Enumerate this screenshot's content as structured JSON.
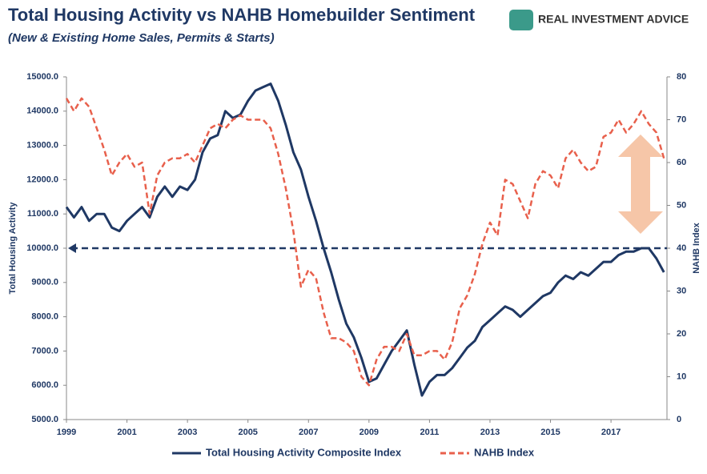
{
  "chart_data": {
    "type": "line",
    "title": "Total Housing Activity vs NAHB Homebuilder Sentiment",
    "subtitle": "(New & Existing Home Sales, Permits & Starts)",
    "source": "REAL INVESTMENT ADVICE",
    "y_label": "Total Housing Activity",
    "y2_label": "NAHB Index",
    "xlim": [
      1999,
      2018.85
    ],
    "xticks": [
      1999,
      2001,
      2003,
      2005,
      2007,
      2009,
      2011,
      2013,
      2015,
      2017
    ],
    "ylim": [
      5000,
      15000
    ],
    "yticks": [
      {
        "value": 5000,
        "label": "5000.0"
      },
      {
        "value": 6000,
        "label": "6000.0"
      },
      {
        "value": 7000,
        "label": "7000.0"
      },
      {
        "value": 8000,
        "label": "8000.0"
      },
      {
        "value": 9000,
        "label": "9000.0"
      },
      {
        "value": 10000,
        "label": "10000.0"
      },
      {
        "value": 11000,
        "label": "11000.0"
      },
      {
        "value": 12000,
        "label": "12000.0"
      },
      {
        "value": 13000,
        "label": "13000.0"
      },
      {
        "value": 14000,
        "label": "14000.0"
      },
      {
        "value": 15000,
        "label": "15000.0"
      }
    ],
    "y2lim": [
      0,
      80
    ],
    "y2ticks": [
      0,
      10,
      20,
      30,
      40,
      50,
      60,
      70,
      80
    ],
    "reference_line": 10000,
    "x": [
      1999,
      1999.25,
      1999.5,
      1999.75,
      2000,
      2000.25,
      2000.5,
      2000.75,
      2001,
      2001.25,
      2001.5,
      2001.75,
      2002,
      2002.25,
      2002.5,
      2002.75,
      2003,
      2003.25,
      2003.5,
      2003.75,
      2004,
      2004.25,
      2004.5,
      2004.75,
      2005,
      2005.25,
      2005.5,
      2005.75,
      2006,
      2006.25,
      2006.5,
      2006.75,
      2007,
      2007.25,
      2007.5,
      2007.75,
      2008,
      2008.25,
      2008.5,
      2008.75,
      2009,
      2009.25,
      2009.5,
      2009.75,
      2010,
      2010.25,
      2010.5,
      2010.75,
      2011,
      2011.25,
      2011.5,
      2011.75,
      2012,
      2012.25,
      2012.5,
      2012.75,
      2013,
      2013.25,
      2013.5,
      2013.75,
      2014,
      2014.25,
      2014.5,
      2014.75,
      2015,
      2015.25,
      2015.5,
      2015.75,
      2016,
      2016.25,
      2016.5,
      2016.75,
      2017,
      2017.25,
      2017.5,
      2017.75,
      2018,
      2018.25,
      2018.5,
      2018.75
    ],
    "series": [
      {
        "name": "Total Housing Activity Composite Index",
        "color": "#1f3864",
        "dashed": false,
        "values": [
          11200,
          10900,
          11200,
          10800,
          11000,
          11000,
          10600,
          10500,
          10800,
          11000,
          11200,
          10900,
          11500,
          11800,
          11500,
          11800,
          11700,
          12000,
          12800,
          13200,
          13300,
          14000,
          13800,
          13900,
          14300,
          14600,
          14700,
          14800,
          14300,
          13600,
          12800,
          12300,
          11500,
          10800,
          10000,
          9300,
          8500,
          7800,
          7400,
          6800,
          6100,
          6200,
          6600,
          7000,
          7300,
          7600,
          6600,
          5700,
          6100,
          6300,
          6300,
          6500,
          6800,
          7100,
          7300,
          7700,
          7900,
          8100,
          8300,
          8200,
          8000,
          8200,
          8400,
          8600,
          8700,
          9000,
          9200,
          9100,
          9300,
          9200,
          9400,
          9600,
          9600,
          9800,
          9900,
          9900,
          10000,
          10000,
          9700,
          9300
        ]
      },
      {
        "name": "NAHB Index",
        "color": "#e8604c",
        "dashed": true,
        "axis": "y2",
        "values": [
          75,
          72,
          75,
          73,
          68,
          63,
          57,
          60,
          62,
          59,
          60,
          48,
          57,
          60,
          61,
          61,
          62,
          60,
          64,
          68,
          69,
          68,
          70,
          71,
          70,
          70,
          70,
          68,
          62,
          54,
          44,
          31,
          35,
          33,
          25,
          19,
          19,
          18,
          16,
          10,
          8,
          14,
          17,
          17,
          16,
          20,
          15,
          15,
          16,
          16,
          14,
          18,
          26,
          29,
          34,
          41,
          46,
          43,
          56,
          55,
          51,
          47,
          55,
          58,
          57,
          54,
          61,
          63,
          60,
          58,
          59,
          66,
          67,
          70,
          67,
          69,
          72,
          69,
          67,
          61
        ]
      }
    ]
  }
}
